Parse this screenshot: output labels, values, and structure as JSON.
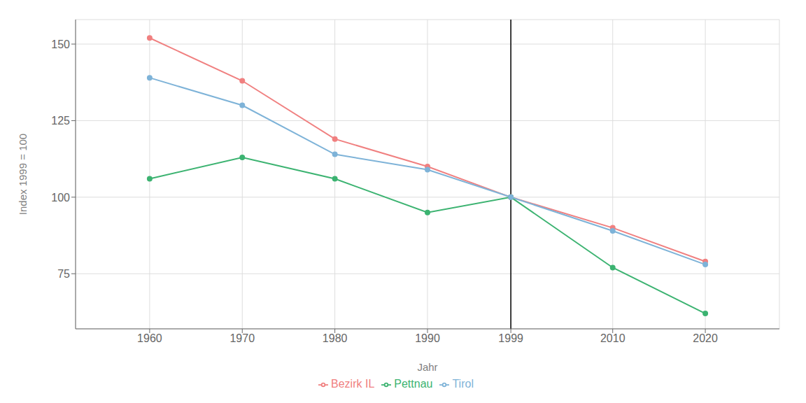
{
  "chart_data": {
    "type": "line",
    "x": [
      1960,
      1970,
      1980,
      1990,
      1999,
      2010,
      2020
    ],
    "series": [
      {
        "name": "Bezirk IL",
        "color": "#F08080",
        "values": [
          152,
          138,
          119,
          110,
          100,
          90,
          79
        ]
      },
      {
        "name": "Pettnau",
        "color": "#3CB371",
        "values": [
          106,
          113,
          106,
          95,
          100,
          77,
          62
        ]
      },
      {
        "name": "Tirol",
        "color": "#7EB3D8",
        "values": [
          139,
          130,
          114,
          109,
          100,
          89,
          78
        ]
      }
    ],
    "xlabel": "Jahr",
    "ylabel": "Index 1999 = 100",
    "xlim": [
      1952,
      2028
    ],
    "xticks": [
      1960,
      1970,
      1980,
      1990,
      1999,
      2010,
      2020
    ],
    "ylim": [
      57,
      158
    ],
    "yticks": [
      75,
      100,
      125,
      150
    ],
    "vlines": [
      1999
    ],
    "marker": "circle",
    "grid": true,
    "legend": "bottom"
  }
}
